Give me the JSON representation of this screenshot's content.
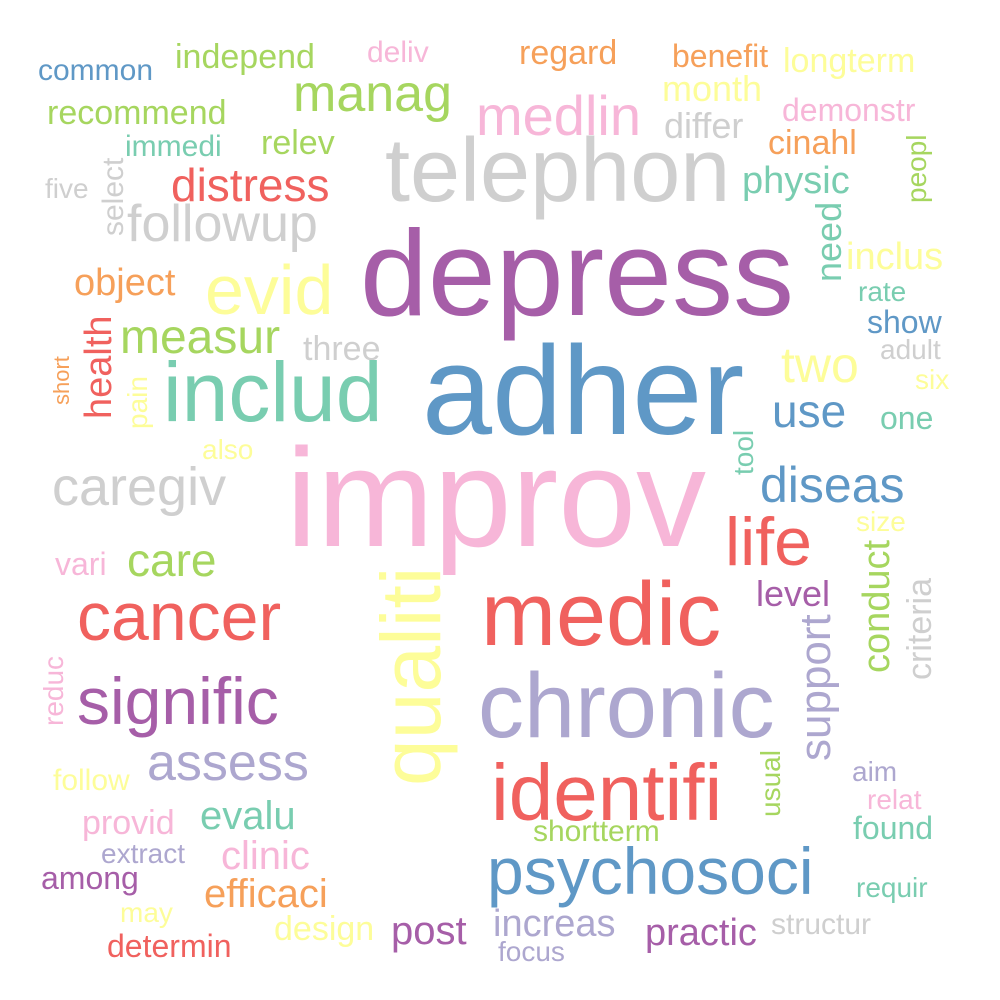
{
  "palette": {
    "pink": "#f7b6d8",
    "purple": "#a65ea8",
    "blue": "#5f98c6",
    "red": "#f0615e",
    "green": "#a6d65f",
    "teal": "#79cdb0",
    "grey": "#cfcfcf",
    "yellow": "#fdfd99",
    "orange": "#f6a05a",
    "lavender": "#ada7cf"
  },
  "words": [
    {
      "text": "common",
      "color": "blue"
    },
    {
      "text": "independ",
      "color": "green"
    },
    {
      "text": "deliv",
      "color": "pink"
    },
    {
      "text": "regard",
      "color": "orange"
    },
    {
      "text": "benefit",
      "color": "orange"
    },
    {
      "text": "longterm",
      "color": "yellow"
    },
    {
      "text": "month",
      "color": "yellow"
    },
    {
      "text": "manag",
      "color": "green"
    },
    {
      "text": "recommend",
      "color": "green"
    },
    {
      "text": "medlin",
      "color": "pink"
    },
    {
      "text": "demonstr",
      "color": "pink"
    },
    {
      "text": "differ",
      "color": "grey"
    },
    {
      "text": "immedi",
      "color": "teal"
    },
    {
      "text": "relev",
      "color": "green"
    },
    {
      "text": "cinahl",
      "color": "orange"
    },
    {
      "text": "telephon",
      "color": "grey"
    },
    {
      "text": "peopl",
      "color": "green"
    },
    {
      "text": "distress",
      "color": "red"
    },
    {
      "text": "physic",
      "color": "teal"
    },
    {
      "text": "five",
      "color": "grey"
    },
    {
      "text": "select",
      "color": "grey"
    },
    {
      "text": "followup",
      "color": "grey"
    },
    {
      "text": "need",
      "color": "teal"
    },
    {
      "text": "inclus",
      "color": "yellow"
    },
    {
      "text": "depress",
      "color": "purple"
    },
    {
      "text": "evid",
      "color": "yellow"
    },
    {
      "text": "object",
      "color": "orange"
    },
    {
      "text": "rate",
      "color": "teal"
    },
    {
      "text": "show",
      "color": "blue"
    },
    {
      "text": "measur",
      "color": "green"
    },
    {
      "text": "health",
      "color": "red"
    },
    {
      "text": "three",
      "color": "grey"
    },
    {
      "text": "adult",
      "color": "grey"
    },
    {
      "text": "two",
      "color": "yellow"
    },
    {
      "text": "six",
      "color": "yellow"
    },
    {
      "text": "short",
      "color": "orange"
    },
    {
      "text": "pain",
      "color": "yellow"
    },
    {
      "text": "includ",
      "color": "teal"
    },
    {
      "text": "adher",
      "color": "blue"
    },
    {
      "text": "use",
      "color": "blue"
    },
    {
      "text": "one",
      "color": "teal"
    },
    {
      "text": "also",
      "color": "yellow"
    },
    {
      "text": "tool",
      "color": "teal"
    },
    {
      "text": "caregiv",
      "color": "grey"
    },
    {
      "text": "improv",
      "color": "pink"
    },
    {
      "text": "diseas",
      "color": "blue"
    },
    {
      "text": "size",
      "color": "yellow"
    },
    {
      "text": "life",
      "color": "red"
    },
    {
      "text": "vari",
      "color": "pink"
    },
    {
      "text": "care",
      "color": "green"
    },
    {
      "text": "conduct",
      "color": "green"
    },
    {
      "text": "criteria",
      "color": "grey"
    },
    {
      "text": "level",
      "color": "purple"
    },
    {
      "text": "cancer",
      "color": "red"
    },
    {
      "text": "medic",
      "color": "red"
    },
    {
      "text": "qualiti",
      "color": "yellow"
    },
    {
      "text": "support",
      "color": "lavender"
    },
    {
      "text": "reduc",
      "color": "pink"
    },
    {
      "text": "signific",
      "color": "purple"
    },
    {
      "text": "chronic",
      "color": "lavender"
    },
    {
      "text": "assess",
      "color": "lavender"
    },
    {
      "text": "aim",
      "color": "lavender"
    },
    {
      "text": "follow",
      "color": "yellow"
    },
    {
      "text": "identifi",
      "color": "red"
    },
    {
      "text": "usual",
      "color": "green"
    },
    {
      "text": "relat",
      "color": "pink"
    },
    {
      "text": "provid",
      "color": "pink"
    },
    {
      "text": "evalu",
      "color": "teal"
    },
    {
      "text": "shortterm",
      "color": "green"
    },
    {
      "text": "found",
      "color": "teal"
    },
    {
      "text": "extract",
      "color": "lavender"
    },
    {
      "text": "clinic",
      "color": "pink"
    },
    {
      "text": "psychosoci",
      "color": "blue"
    },
    {
      "text": "among",
      "color": "purple"
    },
    {
      "text": "efficaci",
      "color": "orange"
    },
    {
      "text": "requir",
      "color": "teal"
    },
    {
      "text": "may",
      "color": "yellow"
    },
    {
      "text": "design",
      "color": "yellow"
    },
    {
      "text": "post",
      "color": "purple"
    },
    {
      "text": "increas",
      "color": "lavender"
    },
    {
      "text": "practic",
      "color": "purple"
    },
    {
      "text": "structur",
      "color": "grey"
    },
    {
      "text": "determin",
      "color": "red"
    },
    {
      "text": "focus",
      "color": "lavender"
    }
  ]
}
